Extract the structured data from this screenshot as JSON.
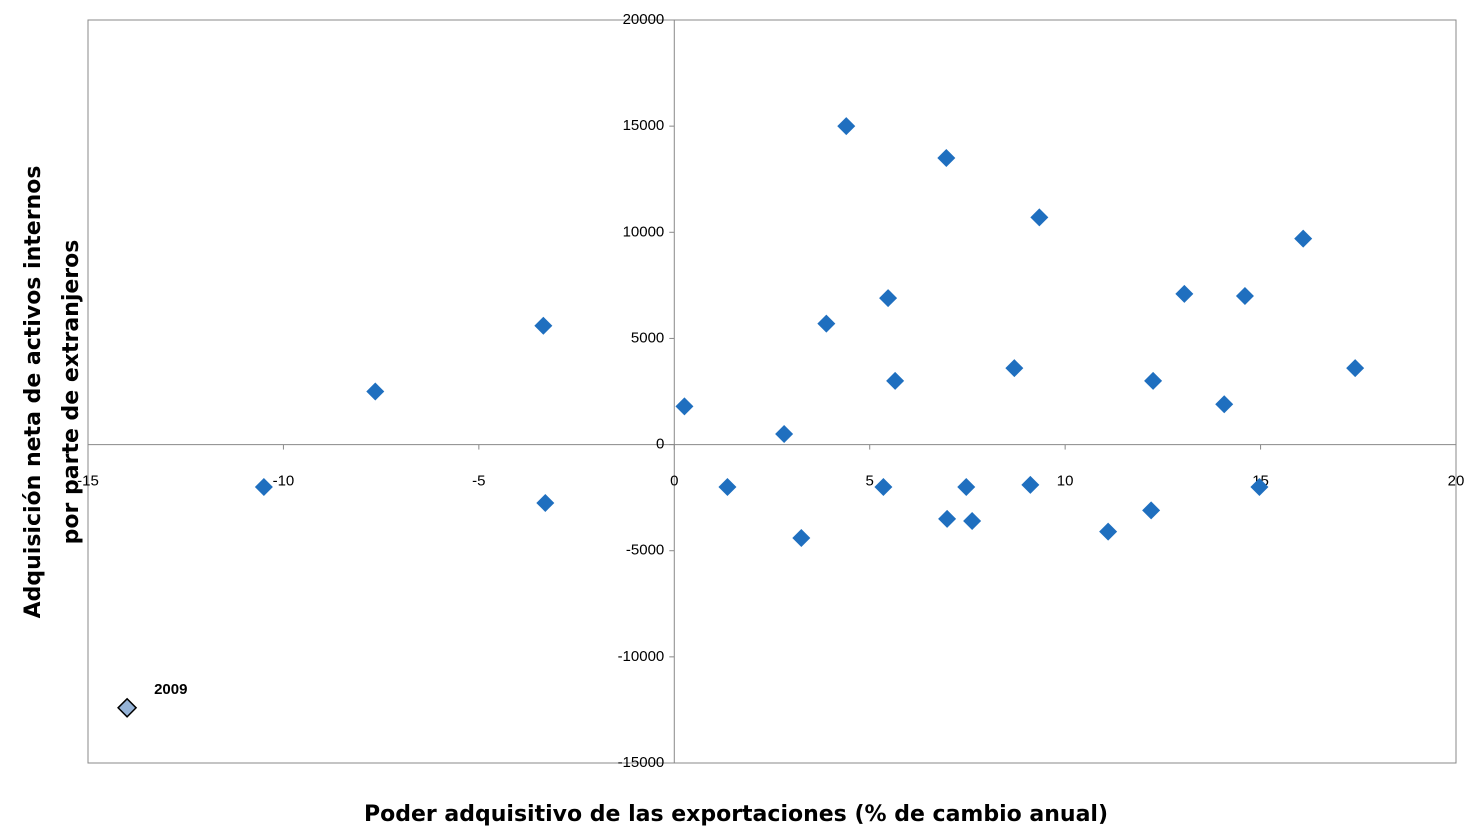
{
  "chart_data": {
    "type": "scatter",
    "x_label": "Poder adquisitivo de las exportaciones (% de cambio anual)",
    "y_label": [
      "Adquisición neta de activos internos",
      "por parte de extranjeros"
    ],
    "xlim": [
      -15,
      20
    ],
    "xticks": [
      -15,
      -10,
      -5,
      0,
      5,
      10,
      15,
      20
    ],
    "ylim": [
      -15000,
      20000
    ],
    "yticks": [
      -15000,
      -10000,
      -5000,
      0,
      5000,
      10000,
      15000,
      20000
    ],
    "series": [
      {
        "color": "#1f6fbf",
        "marker": "diamond",
        "x": [
          -10.5,
          -7.65,
          -3.35,
          -3.3,
          0.26,
          1.36,
          2.81,
          3.25,
          3.89,
          4.4,
          5.35,
          5.47,
          5.65,
          6.96,
          6.98,
          7.47,
          7.62,
          8.7,
          9.11,
          9.34,
          11.1,
          12.2,
          12.25,
          13.05,
          14.07,
          14.6,
          14.97,
          16.09,
          17.42
        ],
        "values": [
          -2000,
          2500,
          5600,
          -2750,
          1800,
          -2000,
          500,
          -4400,
          5700,
          15000,
          -2000,
          6900,
          3000,
          13500,
          -3500,
          -2000,
          -3600,
          3600,
          -1900,
          10700,
          -4100,
          -3100,
          3000,
          7100,
          1900,
          7000,
          -2000,
          9700,
          3600
        ]
      },
      {
        "color": "#95b3d7",
        "stroke": "#000",
        "marker": "diamond",
        "x": [
          -14
        ],
        "values": [
          -12400
        ],
        "point_labels": [
          "2009"
        ]
      }
    ]
  }
}
